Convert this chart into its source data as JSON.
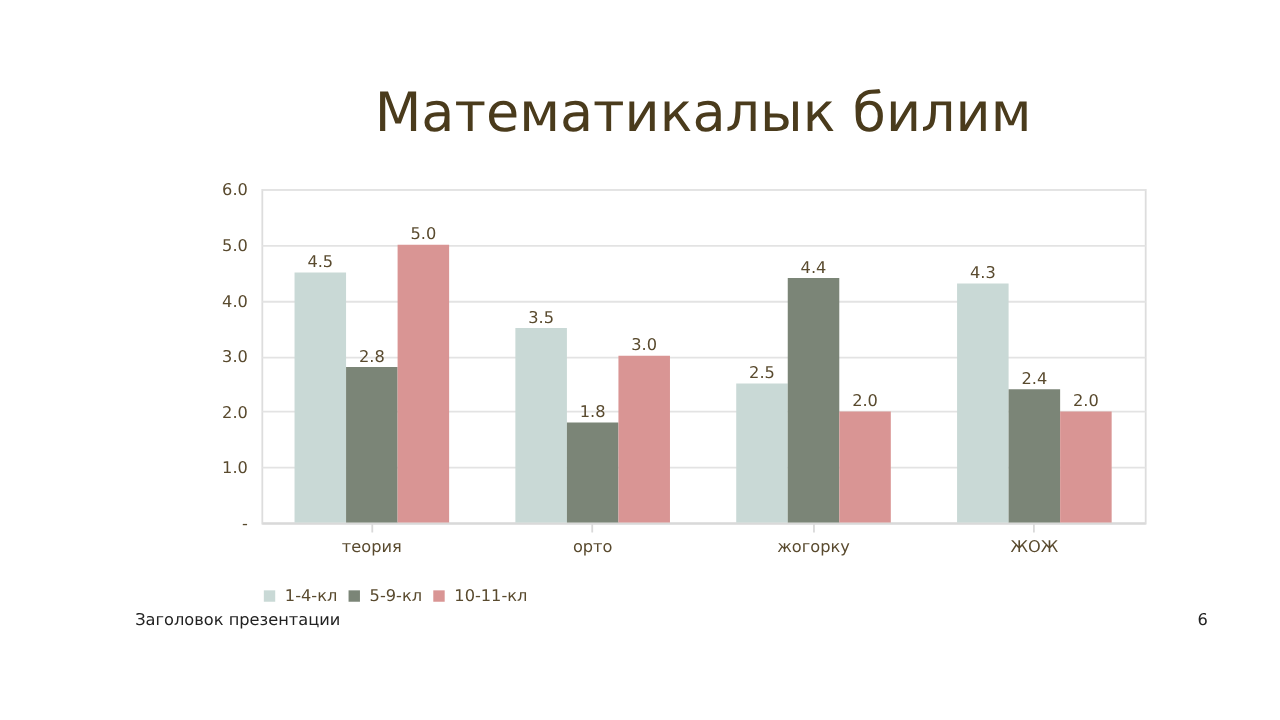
{
  "chart_data": {
    "type": "bar",
    "title": "Математикалык билим",
    "categories": [
      "теория",
      "орто",
      "жогорку",
      "ЖОЖ"
    ],
    "series": [
      {
        "name": "1-4-кл",
        "color": "#c9d9d6",
        "values": [
          4.5,
          3.5,
          2.5,
          4.3
        ],
        "value_labels": [
          "4.5",
          "3.5",
          "2.5",
          "4.3"
        ]
      },
      {
        "name": "5-9-кл",
        "color": "#7b8577",
        "values": [
          2.8,
          1.8,
          4.4,
          2.4
        ],
        "value_labels": [
          "2.8",
          "1.8",
          "4.4",
          "2.4"
        ]
      },
      {
        "name": "10-11-кл",
        "color": "#d99594",
        "values": [
          5.0,
          3.0,
          2.0,
          2.0
        ],
        "value_labels": [
          "5.0",
          "3.0",
          "2.0",
          "2.0"
        ]
      }
    ],
    "ylim": [
      0,
      6
    ],
    "yticks": [
      {
        "value": 0,
        "label": "-"
      },
      {
        "value": 1,
        "label": "1.0"
      },
      {
        "value": 2,
        "label": "2.0"
      },
      {
        "value": 3,
        "label": "3.0"
      },
      {
        "value": 4,
        "label": "4.0"
      },
      {
        "value": 5,
        "label": "5.0"
      },
      {
        "value": 6,
        "label": "6.0"
      }
    ],
    "grid": "y",
    "legend": "bottom",
    "annotations": [
      "Заголовок презентации",
      "6"
    ]
  }
}
